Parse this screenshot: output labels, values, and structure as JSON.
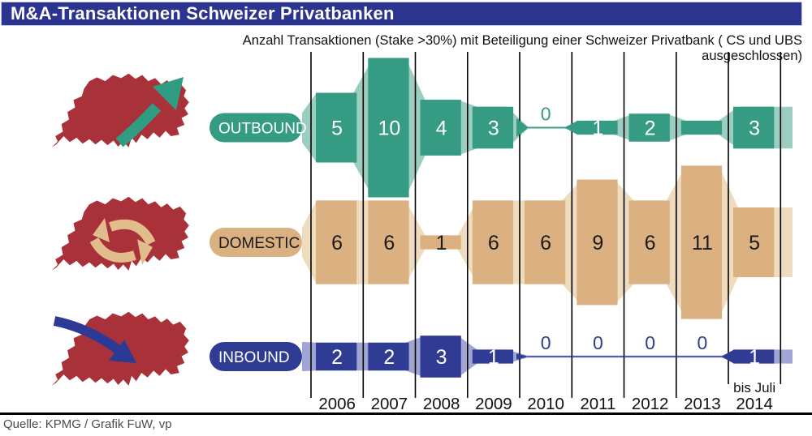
{
  "title": "M&A-Transaktionen Schweizer Privatbanken",
  "subtitle": "Anzahl Transaktionen (Stake >30%) mit Beteiligung einer Schweizer Privatbank ( CS und UBS ausgeschlossen)",
  "source": "Quelle: KPMG / Grafik FuW, vp",
  "colors": {
    "title_bar": "#2b3590",
    "title_border": "#c9cce2",
    "map_red": "#a93139",
    "grid_line": "#000000",
    "text": "#111111",
    "source_text": "#4b4b4b"
  },
  "icons": [
    {
      "name": "outbound-map-icon",
      "desc": "red Switzerland map with teal arrow pointing out (up-right)",
      "arrow_color": "#2f9d82"
    },
    {
      "name": "domestic-map-icon",
      "desc": "red Switzerland map with two tan circular swap arrows",
      "arrow_color": "#e2bd8c"
    },
    {
      "name": "inbound-map-icon",
      "desc": "red Switzerland map with navy arrow pointing into the map",
      "arrow_color": "#2c3a96"
    }
  ],
  "chart_data": {
    "type": "area",
    "variant": "flow-bands",
    "unit": "Anzahl Transaktionen",
    "categories": [
      "2006",
      "2007",
      "2008",
      "2009",
      "2010",
      "2011",
      "2012",
      "2013",
      "2014"
    ],
    "last_category_note": "bis Juli",
    "grid": true,
    "legend_position": "left-pills",
    "series": [
      {
        "name": "OUTBOUND",
        "values": [
          5,
          10,
          4,
          3,
          0,
          1,
          2,
          1,
          3
        ],
        "labels": [
          "5",
          "10",
          "4",
          "3",
          "0",
          "1",
          "2",
          "",
          "3"
        ],
        "colors": {
          "band": "#359b82",
          "band_light": "#9bcec0",
          "value_text": "#ffffff",
          "pill_text": "#ffffff"
        }
      },
      {
        "name": "DOMESTIC",
        "values": [
          6,
          6,
          1,
          6,
          6,
          9,
          6,
          11,
          5
        ],
        "labels": [
          "6",
          "6",
          "1",
          "6",
          "6",
          "9",
          "6",
          "11",
          "5"
        ],
        "colors": {
          "band": "#dcb181",
          "band_light": "#efdcbe",
          "value_text": "#1a1a1a",
          "pill_text": "#1a1a1a"
        }
      },
      {
        "name": "INBOUND",
        "values": [
          2,
          2,
          3,
          1,
          0,
          0,
          0,
          0,
          1
        ],
        "labels": [
          "2",
          "2",
          "3",
          "1",
          "0",
          "0",
          "0",
          "0",
          "1"
        ],
        "colors": {
          "band": "#303c94",
          "band_light": "#a0a6d4",
          "value_text": "#ffffff",
          "pill_text": "#ffffff"
        }
      }
    ]
  }
}
